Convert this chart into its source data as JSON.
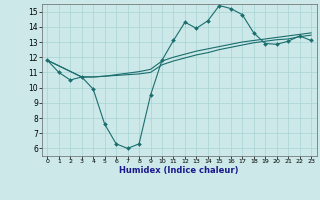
{
  "xlabel": "Humidex (Indice chaleur)",
  "bg_color": "#cce8e8",
  "line_color": "#1a6e6e",
  "xlim": [
    -0.5,
    23.5
  ],
  "ylim": [
    5.5,
    15.5
  ],
  "xticks": [
    0,
    1,
    2,
    3,
    4,
    5,
    6,
    7,
    8,
    9,
    10,
    11,
    12,
    13,
    14,
    15,
    16,
    17,
    18,
    19,
    20,
    21,
    22,
    23
  ],
  "yticks": [
    6,
    7,
    8,
    9,
    10,
    11,
    12,
    13,
    14,
    15
  ],
  "series1_x": [
    0,
    1,
    2,
    3,
    4,
    5,
    6,
    7,
    8,
    9,
    10,
    11,
    12,
    13,
    14,
    15,
    16,
    17,
    18,
    19,
    20,
    21,
    22,
    23
  ],
  "series1_y": [
    11.8,
    11.0,
    10.5,
    10.7,
    9.9,
    7.6,
    6.3,
    6.0,
    6.3,
    9.5,
    11.8,
    13.1,
    14.3,
    13.9,
    14.4,
    15.4,
    15.2,
    14.8,
    13.6,
    12.9,
    12.85,
    13.05,
    13.4,
    13.1
  ],
  "series2_x": [
    0,
    3,
    4,
    5,
    6,
    7,
    8,
    9,
    10,
    11,
    12,
    13,
    14,
    15,
    16,
    17,
    18,
    19,
    20,
    21,
    22,
    23
  ],
  "series2_y": [
    11.8,
    10.7,
    10.7,
    10.75,
    10.8,
    10.85,
    10.9,
    11.0,
    11.5,
    11.75,
    11.95,
    12.15,
    12.3,
    12.5,
    12.65,
    12.8,
    12.95,
    13.05,
    13.15,
    13.2,
    13.35,
    13.45
  ],
  "series3_x": [
    0,
    3,
    4,
    5,
    6,
    7,
    8,
    9,
    10,
    11,
    12,
    13,
    14,
    15,
    16,
    17,
    18,
    19,
    20,
    21,
    22,
    23
  ],
  "series3_y": [
    11.8,
    10.7,
    10.7,
    10.75,
    10.85,
    10.95,
    11.05,
    11.2,
    11.75,
    12.0,
    12.2,
    12.4,
    12.55,
    12.7,
    12.85,
    13.0,
    13.1,
    13.2,
    13.3,
    13.4,
    13.5,
    13.6
  ]
}
